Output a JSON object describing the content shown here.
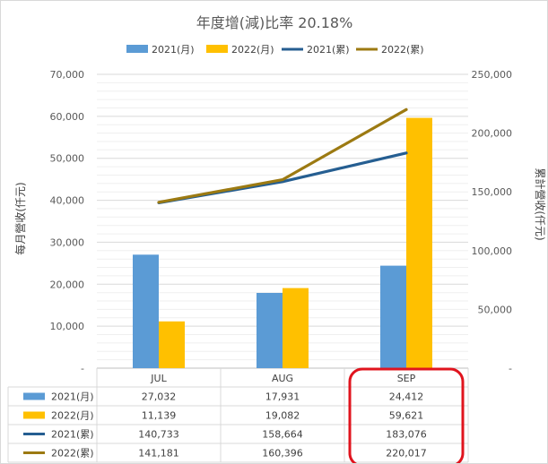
{
  "chart_data": {
    "type": "bar",
    "title": "年度增(減)比率 20.18%",
    "categories": [
      "JUL",
      "AUG",
      "SEP"
    ],
    "y_left": {
      "label": "每月營收(仟元)",
      "min": 0,
      "max": 70000,
      "ticks": [
        "-",
        "10,000",
        "20,000",
        "30,000",
        "40,000",
        "50,000",
        "60,000",
        "70,000"
      ]
    },
    "y_right": {
      "label": "累計營收(仟元)",
      "min": 0,
      "max": 250000,
      "ticks": [
        "-",
        "50,000",
        "100,000",
        "150,000",
        "200,000",
        "250,000"
      ]
    },
    "bar_series": [
      {
        "name": "2021(月)",
        "color": "#5b9bd5",
        "values": [
          27032,
          17931,
          24412
        ],
        "labels": [
          "27,032",
          "17,931",
          "24,412"
        ]
      },
      {
        "name": "2022(月)",
        "color": "#ffc000",
        "values": [
          11139,
          19082,
          59621
        ],
        "labels": [
          "11,139",
          "19,082",
          "59,621"
        ]
      }
    ],
    "line_series": [
      {
        "name": "2021(累)",
        "color": "#255e91",
        "values": [
          140733,
          158664,
          183076
        ],
        "labels": [
          "140,733",
          "158,664",
          "183,076"
        ]
      },
      {
        "name": "2022(累)",
        "color": "#9c7a12",
        "values": [
          141181,
          160396,
          220017
        ],
        "labels": [
          "141,181",
          "160,396",
          "220,017"
        ]
      }
    ],
    "legend_position": "top",
    "data_table": true,
    "gridlines": true,
    "highlight": {
      "category": "SEP",
      "color": "#e0141e"
    }
  }
}
